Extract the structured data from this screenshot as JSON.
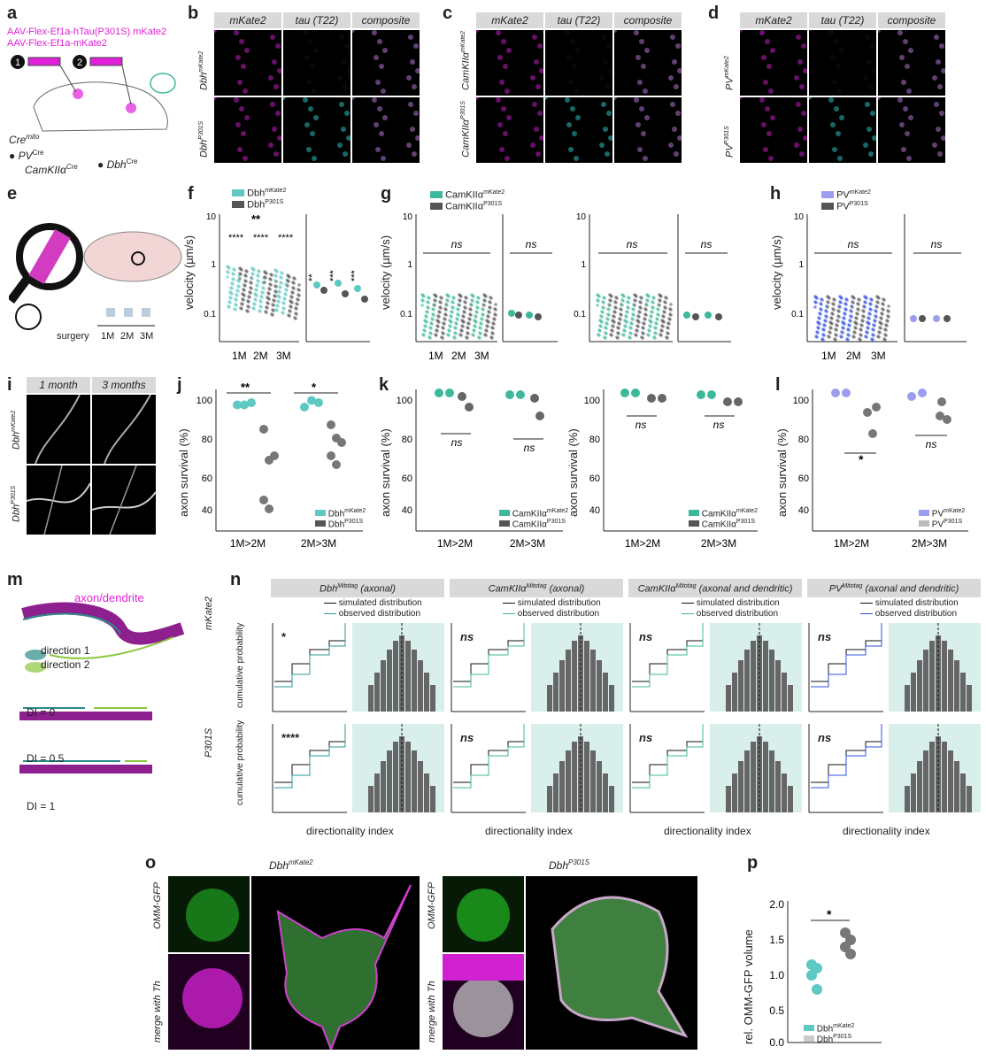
{
  "panels": {
    "a": {
      "label": "a",
      "line1": "AAV-Flex-Ef1a-hTau(P301S) mKate2",
      "line2": "AAV-Flex-Ef1a-mKate2",
      "cre": "Cre",
      "cre_sup": "mito",
      "step1": "1",
      "step2": "2",
      "pv": "PV",
      "pv_sup": "Cre",
      "camk": "CamKIIα",
      "camk_sup": "Cre",
      "dbh": "Dbh",
      "dbh_sup": "Cre"
    },
    "b": {
      "label": "b",
      "cols": [
        "mKate2",
        "tau (T22)",
        "composite"
      ],
      "rows": [
        "Dbh",
        "Dbh"
      ],
      "row_sups": [
        "mKate2",
        "P301S"
      ]
    },
    "c": {
      "label": "c",
      "cols": [
        "mKate2",
        "tau (T22)",
        "composite"
      ],
      "rows": [
        "CamKIIα",
        "CamKIIα"
      ],
      "row_sups": [
        "mKate2",
        "P301S"
      ]
    },
    "d": {
      "label": "d",
      "cols": [
        "mKate2",
        "tau (T22)",
        "composite"
      ],
      "rows": [
        "PV",
        "PV"
      ],
      "row_sups": [
        "mKate2",
        "P301S"
      ]
    },
    "e": {
      "label": "e",
      "surgery": "surgery",
      "tp": [
        "1M",
        "2M",
        "3M"
      ]
    },
    "f": {
      "label": "f",
      "legend": [
        "Dbh",
        "Dbh"
      ],
      "legend_sups": [
        "mKate2",
        "P301S"
      ],
      "ylabel": "velocity (µm/s)",
      "x": [
        "1M",
        "2M",
        "3M"
      ],
      "stars_main": [
        "****",
        "****",
        "****"
      ],
      "stars_top": "**",
      "stars_side": [
        "**",
        "***",
        "***"
      ]
    },
    "g": {
      "label": "g",
      "legend": [
        "CamKIIα",
        "CamKIIα"
      ],
      "legend_sups": [
        "mKate2",
        "P301S"
      ],
      "ylabel": "velocity (µm/s)",
      "x": [
        "1M",
        "2M",
        "3M"
      ],
      "ns": "ns"
    },
    "h": {
      "label": "h",
      "legend": [
        "PV",
        "PV"
      ],
      "legend_sups": [
        "mKate2",
        "P301S"
      ],
      "ylabel": "velocity (µm/s)",
      "x": [
        "1M",
        "2M",
        "3M"
      ],
      "ns": "ns"
    },
    "i": {
      "label": "i",
      "cols": [
        "1 month",
        "3 months"
      ],
      "rows": [
        "Dbh",
        "Dbh"
      ],
      "row_sups": [
        "mKate2",
        "P301S"
      ]
    },
    "j": {
      "label": "j",
      "ylabel": "axon survival (%)",
      "x": [
        "1M>2M",
        "2M>3M"
      ],
      "stars": [
        "**",
        "*"
      ],
      "legend": [
        "Dbh",
        "Dbh"
      ],
      "legend_sups": [
        "mKate2",
        "P301S"
      ]
    },
    "k": {
      "label": "k",
      "ylabel": "axon survival (%)",
      "x": [
        "1M>2M",
        "2M>3M"
      ],
      "ns": "ns",
      "legend": [
        "CamKIIα",
        "CamKIIα"
      ],
      "legend_sups": [
        "mKate2",
        "P301S"
      ]
    },
    "l": {
      "label": "l",
      "ylabel": "axon survival (%)",
      "x": [
        "1M>2M",
        "2M>3M"
      ],
      "star": "*",
      "ns": "ns",
      "legend": [
        "PV",
        "PV"
      ],
      "legend_sups": [
        "mKate2",
        "P301S"
      ]
    },
    "m": {
      "label": "m",
      "title": "axon/dendrite",
      "dir1": "direction 1",
      "dir2": "direction 2",
      "di": [
        "DI = 0",
        "DI = 0.5",
        "DI = 1"
      ]
    },
    "n": {
      "label": "n",
      "heads": [
        "Dbh",
        "CamKIIα",
        "CamKIIα",
        "PV"
      ],
      "head_sups": [
        "Mitotag",
        "Mitotag",
        "Mitotag",
        "Mitotag"
      ],
      "head_suffix": [
        "(axonal)",
        "(axonal)",
        "(axonal and dendritic)",
        "(axonal and dendritic)"
      ],
      "sim": "simulated distribution",
      "obs": "observed distribution",
      "rows": [
        "mKate2",
        "P301S"
      ],
      "ylabel": "cumulative probability",
      "xlabel": "directionality index",
      "sig_row1": [
        "*",
        "ns",
        "ns",
        "ns"
      ],
      "sig_row2": [
        "****",
        "ns",
        "ns",
        "ns"
      ]
    },
    "o": {
      "label": "o",
      "titles": [
        "Dbh",
        "Dbh"
      ],
      "title_sups": [
        "mKate2",
        "P301S"
      ],
      "rows": [
        "OMM-GFP",
        "merge with Th"
      ]
    },
    "p": {
      "label": "p",
      "ylabel": "rel. OMM-GFP volume",
      "star": "*",
      "legend": [
        "Dbh",
        "Dbh"
      ],
      "legend_sups": [
        "mKate2",
        "P301S"
      ]
    }
  },
  "colors": {
    "magenta": "#e020d8",
    "teal": "#5ec8c2",
    "green": "#3cb89a",
    "blue": "#2f4fe0",
    "lavender": "#9c9cf0",
    "dark": "#555555",
    "cyan": "#40e0e0"
  },
  "chart_data": [
    {
      "type": "scatter",
      "panel": "j",
      "categories": [
        "1M>2M",
        "2M>3M"
      ],
      "series": [
        {
          "name": "Dbh mKate2",
          "values": [
            [
              97,
              97,
              98
            ],
            [
              96,
              99,
              98
            ]
          ]
        },
        {
          "name": "Dbh P301S",
          "values": [
            [
              86,
              72,
              74,
              54,
              50
            ],
            [
              88,
              82,
              80,
              74,
              70
            ]
          ]
        }
      ],
      "ylim": [
        40,
        100
      ]
    },
    {
      "type": "scatter",
      "panel": "p",
      "categories": [
        "Dbh mKate2",
        "Dbh P301S"
      ],
      "series": [
        {
          "name": "Dbh mKate2",
          "values": [
            1.1,
            1.05,
            0.95,
            0.75
          ]
        },
        {
          "name": "Dbh P301S",
          "values": [
            1.55,
            1.45,
            1.35,
            1.25
          ]
        }
      ],
      "ylim": [
        0,
        2
      ]
    }
  ]
}
